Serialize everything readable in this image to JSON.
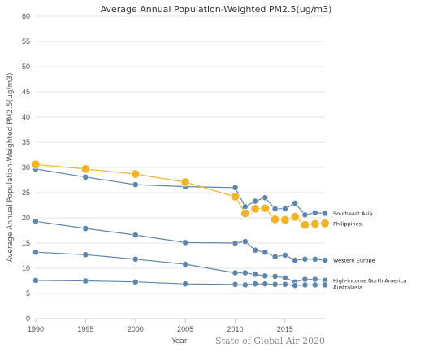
{
  "chart_data": {
    "type": "line",
    "title": "Average Annual Population-Weighted PM2.5(ug/m3)",
    "xlabel": "Year",
    "ylabel": "Average Annual Population-Weighted PM2.5(ug/m3)",
    "xlim": [
      1990,
      2019
    ],
    "ylim": [
      0,
      60
    ],
    "x_ticks": [
      1990,
      1995,
      2000,
      2005,
      2010,
      2015
    ],
    "y_ticks": [
      0,
      5,
      10,
      15,
      20,
      25,
      30,
      35,
      40,
      45,
      50,
      55,
      60
    ],
    "grid": "horizontal",
    "credit": "State of Global Air 2020",
    "series": [
      {
        "name": "Southeast Asia",
        "color": "#5f86a8",
        "x": [
          1990,
          1995,
          2000,
          2005,
          2010,
          2011,
          2012,
          2013,
          2014,
          2015,
          2016,
          2017,
          2018,
          2019
        ],
        "y": [
          29.7,
          28.1,
          26.6,
          26.2,
          26.0,
          22.2,
          23.3,
          24.0,
          21.8,
          21.8,
          22.9,
          20.6,
          21.0,
          20.9
        ]
      },
      {
        "name": "Philippines",
        "color": "#f0b429",
        "x": [
          1990,
          1995,
          2000,
          2005,
          2010,
          2011,
          2012,
          2013,
          2014,
          2015,
          2016,
          2017,
          2018,
          2019
        ],
        "y": [
          30.6,
          29.7,
          28.7,
          27.1,
          24.2,
          20.9,
          21.8,
          21.9,
          19.7,
          19.6,
          20.2,
          18.6,
          18.8,
          18.9
        ]
      },
      {
        "name": "Western Europe",
        "color": "#5f86a8",
        "x": [
          1990,
          1995,
          2000,
          2005,
          2010,
          2011,
          2012,
          2013,
          2014,
          2015,
          2016,
          2017,
          2018,
          2019
        ],
        "y": [
          19.3,
          17.9,
          16.6,
          15.1,
          15.0,
          15.3,
          13.6,
          13.2,
          12.3,
          12.6,
          11.6,
          11.8,
          11.8,
          11.6
        ]
      },
      {
        "name": "High-income North America",
        "color": "#5f86a8",
        "x": [
          1990,
          1995,
          2000,
          2005,
          2010,
          2011,
          2012,
          2013,
          2014,
          2015,
          2016,
          2017,
          2018,
          2019
        ],
        "y": [
          13.2,
          12.7,
          11.8,
          10.8,
          9.1,
          9.1,
          8.8,
          8.5,
          8.4,
          8.1,
          7.3,
          7.8,
          7.8,
          7.6
        ]
      },
      {
        "name": "Australasia",
        "color": "#5f86a8",
        "x": [
          1990,
          1995,
          2000,
          2005,
          2010,
          2011,
          2012,
          2013,
          2014,
          2015,
          2016,
          2017,
          2018,
          2019
        ],
        "y": [
          7.6,
          7.5,
          7.3,
          6.9,
          6.8,
          6.7,
          6.9,
          6.9,
          6.8,
          6.8,
          6.6,
          6.7,
          6.7,
          6.7
        ]
      }
    ]
  }
}
